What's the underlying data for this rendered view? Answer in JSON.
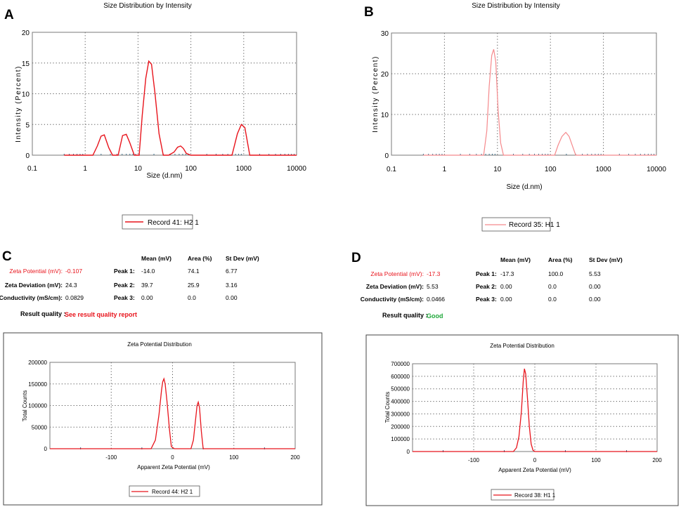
{
  "panels": {
    "a": {
      "letter": "A"
    },
    "b": {
      "letter": "B"
    },
    "c": {
      "letter": "C"
    },
    "d": {
      "letter": "D"
    }
  },
  "chart_data": [
    {
      "id": "A",
      "type": "line",
      "title": "Size Distribution by Intensity",
      "xlabel": "Size (d.nm)",
      "ylabel": "Intensity (Percent)",
      "xscale": "log",
      "xlim": [
        0.1,
        10000
      ],
      "ylim": [
        0,
        20
      ],
      "xticks": [
        "0.1",
        "1",
        "10",
        "100",
        "1000",
        "10000"
      ],
      "yticks": [
        "0",
        "5",
        "10",
        "15",
        "20"
      ],
      "color": "#e8141c",
      "legend": "Record 41: H2 1",
      "series": [
        {
          "name": "Record 41: H2 1",
          "x": [
            0.4,
            1.4,
            1.7,
            2.0,
            2.3,
            2.8,
            3.3,
            4.2,
            5.1,
            6.0,
            7.0,
            8.5,
            10.5,
            12,
            14,
            16,
            18,
            21,
            25,
            30,
            38,
            48,
            56,
            64,
            72,
            82,
            100,
            250,
            600,
            760,
            900,
            1050,
            1300,
            10000
          ],
          "y": [
            0,
            0,
            1.5,
            3.1,
            3.3,
            1.2,
            0,
            0,
            3.2,
            3.4,
            2.0,
            0,
            0,
            6.5,
            12.5,
            15.3,
            14.8,
            10,
            3.5,
            0,
            0,
            0.5,
            1.3,
            1.5,
            1.1,
            0.3,
            0,
            0,
            0,
            3.5,
            5.0,
            4.5,
            0,
            0
          ]
        }
      ]
    },
    {
      "id": "B",
      "type": "line",
      "title": "Size Distribution by Intensity",
      "xlabel": "Size (d.nm)",
      "ylabel": "Intensity (Percent)",
      "xscale": "log",
      "xlim": [
        0.1,
        10000
      ],
      "ylim": [
        0,
        30
      ],
      "xticks": [
        "0.1",
        "1",
        "10",
        "100",
        "1000",
        "10000"
      ],
      "yticks": [
        "0",
        "10",
        "20",
        "30"
      ],
      "color": "#f5898c",
      "legend": "Record 35: H1 1",
      "series": [
        {
          "name": "Record 35: H1 1",
          "x": [
            0.4,
            5.5,
            6.3,
            7.0,
            7.8,
            8.5,
            9.3,
            10.3,
            11.5,
            13,
            120,
            140,
            165,
            195,
            225,
            265,
            300,
            10000
          ],
          "y": [
            0,
            0,
            6,
            17,
            24.5,
            26,
            23,
            11,
            3,
            0,
            0,
            2.5,
            4.6,
            5.6,
            4.6,
            2,
            0,
            0
          ]
        }
      ]
    },
    {
      "id": "C",
      "type": "line",
      "title": "Zeta Potential Distribution",
      "xlabel": "Apparent Zeta Potential (mV)",
      "ylabel": "Total Counts",
      "xlim": [
        -200,
        200
      ],
      "ylim": [
        0,
        200000
      ],
      "xticks": [
        "-100",
        "0",
        "100",
        "200"
      ],
      "yticks": [
        "0",
        "50000",
        "100000",
        "150000",
        "200000"
      ],
      "color": "#e8141c",
      "legend": "Record 44: H2 1",
      "series": [
        {
          "name": "Record 44: H2 1",
          "x": [
            -200,
            -35,
            -28,
            -22,
            -18,
            -16,
            -14,
            -12,
            -9,
            -5,
            -2,
            3,
            30,
            34,
            37,
            40,
            42,
            44,
            47,
            50,
            55,
            200
          ],
          "y": [
            0,
            0,
            20000,
            80000,
            135000,
            155000,
            162000,
            150000,
            110000,
            45000,
            5000,
            0,
            0,
            20000,
            60000,
            100000,
            108000,
            95000,
            40000,
            0,
            0,
            0
          ]
        }
      ]
    },
    {
      "id": "D",
      "type": "line",
      "title": "Zeta Potential Distribution",
      "xlabel": "Apparent Zeta Potential (mV)",
      "ylabel": "Total Counts",
      "xlim": [
        -200,
        200
      ],
      "ylim": [
        0,
        700000
      ],
      "xticks": [
        "-100",
        "0",
        "100",
        "200"
      ],
      "yticks": [
        "0",
        "100000",
        "200000",
        "300000",
        "400000",
        "500000",
        "600000",
        "700000"
      ],
      "color": "#e8141c",
      "legend": "Record 38: H1 1",
      "series": [
        {
          "name": "Record 38: H1 1",
          "x": [
            -200,
            -35,
            -30,
            -26,
            -22,
            -19,
            -17,
            -15,
            -12,
            -9,
            -6,
            -3,
            0,
            200
          ],
          "y": [
            0,
            0,
            30000,
            120000,
            320000,
            560000,
            660000,
            620000,
            420000,
            200000,
            60000,
            10000,
            0,
            0
          ]
        }
      ]
    }
  ],
  "zeta_tables": {
    "c": {
      "headers": [
        "Mean (mV)",
        "Area (%)",
        "St Dev (mV)"
      ],
      "zeta_potential_label": "Zeta Potential (mV):",
      "zeta_potential_value": "-0.107",
      "zeta_deviation_label": "Zeta Deviation (mV):",
      "zeta_deviation_value": "24.3",
      "conductivity_label": "Conductivity (mS/cm):",
      "conductivity_value": "0.0829",
      "peaks": [
        {
          "label": "Peak 1:",
          "mean": "-14.0",
          "area": "74.1",
          "stdev": "6.77"
        },
        {
          "label": "Peak 2:",
          "mean": "39.7",
          "area": "25.9",
          "stdev": "3.16"
        },
        {
          "label": "Peak 3:",
          "mean": "0.00",
          "area": "0.0",
          "stdev": "0.00"
        }
      ],
      "result_quality_label": "Result quality :",
      "result_quality_value": "See result quality report",
      "result_quality_color": "#e8141c"
    },
    "d": {
      "headers": [
        "Mean (mV)",
        "Area (%)",
        "St Dev (mV)"
      ],
      "zeta_potential_label": "Zeta Potential (mV):",
      "zeta_potential_value": "-17.3",
      "zeta_deviation_label": "Zeta Deviation (mV):",
      "zeta_deviation_value": "5.53",
      "conductivity_label": "Conductivity (mS/cm):",
      "conductivity_value": "0.0466",
      "peaks": [
        {
          "label": "Peak 1:",
          "mean": "-17.3",
          "area": "100.0",
          "stdev": "5.53"
        },
        {
          "label": "Peak 2:",
          "mean": "0.00",
          "area": "0.0",
          "stdev": "0.00"
        },
        {
          "label": "Peak 3:",
          "mean": "0.00",
          "area": "0.0",
          "stdev": "0.00"
        }
      ],
      "result_quality_label": "Result quality :",
      "result_quality_value": "Good",
      "result_quality_color": "#1fa83a"
    }
  }
}
